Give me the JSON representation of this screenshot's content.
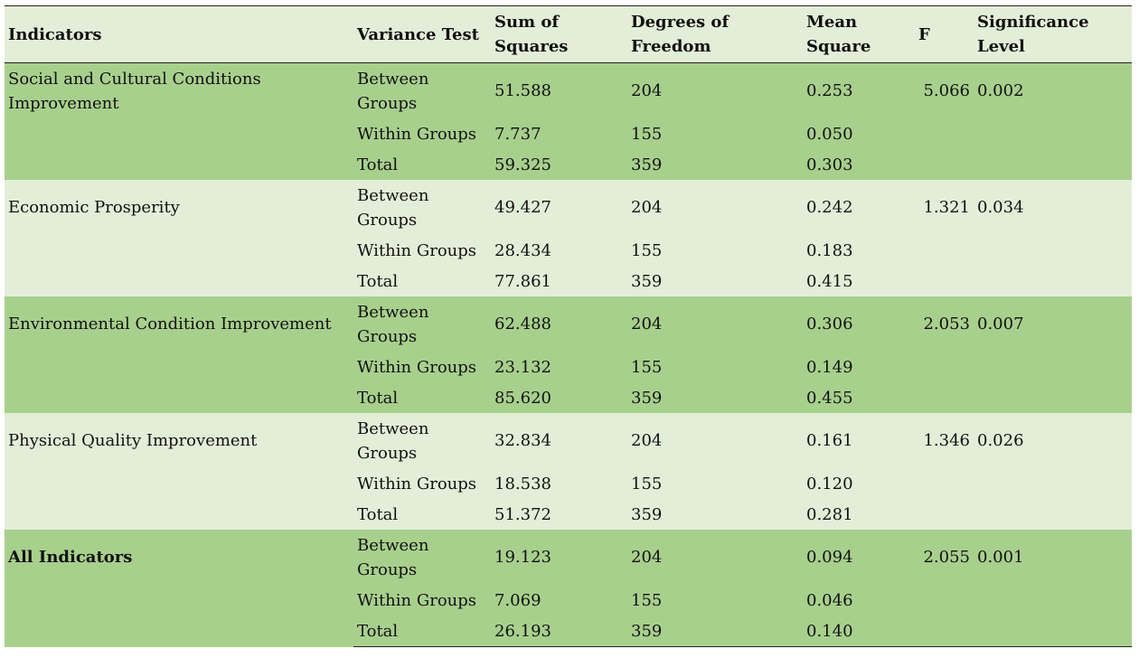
{
  "headers": {
    "indicators": "Indicators",
    "variance_test": "Variance Test",
    "sum_of_squares": "Sum of Squares",
    "degrees_of_freedom": "Degrees of Freedom",
    "mean_square": "Mean Square",
    "f": "F",
    "significance_level": "Significance Level"
  },
  "groups": [
    {
      "indicator": "Social and Cultural Conditions Improvement",
      "f": "5.066",
      "sig": "0.002",
      "rows": [
        {
          "test": "Between Groups",
          "ss": "51.588",
          "df": "204",
          "ms": "0.253"
        },
        {
          "test": "Within Groups",
          "ss": "7.737",
          "df": "155",
          "ms": "0.050"
        },
        {
          "test": "Total",
          "ss": "59.325",
          "df": "359",
          "ms": "0.303"
        }
      ]
    },
    {
      "indicator": "Economic Prosperity",
      "f": "1.321",
      "sig": "0.034",
      "rows": [
        {
          "test": "Between Groups",
          "ss": "49.427",
          "df": "204",
          "ms": "0.242"
        },
        {
          "test": "Within Groups",
          "ss": "28.434",
          "df": "155",
          "ms": "0.183"
        },
        {
          "test": "Total",
          "ss": "77.861",
          "df": "359",
          "ms": "0.415"
        }
      ]
    },
    {
      "indicator": "Environmental Condition Improvement",
      "f": "2.053",
      "sig": "0.007",
      "rows": [
        {
          "test": "Between Groups",
          "ss": "62.488",
          "df": "204",
          "ms": "0.306"
        },
        {
          "test": "Within Groups",
          "ss": "23.132",
          "df": "155",
          "ms": "0.149"
        },
        {
          "test": "Total",
          "ss": "85.620",
          "df": "359",
          "ms": "0.455"
        }
      ]
    },
    {
      "indicator": "Physical Quality Improvement",
      "f": "1.346",
      "sig": "0.026",
      "rows": [
        {
          "test": "Between Groups",
          "ss": "32.834",
          "df": "204",
          "ms": "0.161"
        },
        {
          "test": "Within Groups",
          "ss": "18.538",
          "df": "155",
          "ms": "0.120"
        },
        {
          "test": "Total",
          "ss": "51.372",
          "df": "359",
          "ms": "0.281"
        }
      ]
    },
    {
      "indicator": "All Indicators",
      "f": "2.055",
      "sig": "0.001",
      "rows": [
        {
          "test": "Between Groups",
          "ss": "19.123",
          "df": "204",
          "ms": "0.094"
        },
        {
          "test": "Within Groups",
          "ss": "7.069",
          "df": "155",
          "ms": "0.046"
        },
        {
          "test": "Total",
          "ss": "26.193",
          "df": "359",
          "ms": "0.140"
        }
      ]
    }
  ],
  "colors": {
    "dark_band": "#a8d08d",
    "light_band": "#e3eed8"
  }
}
